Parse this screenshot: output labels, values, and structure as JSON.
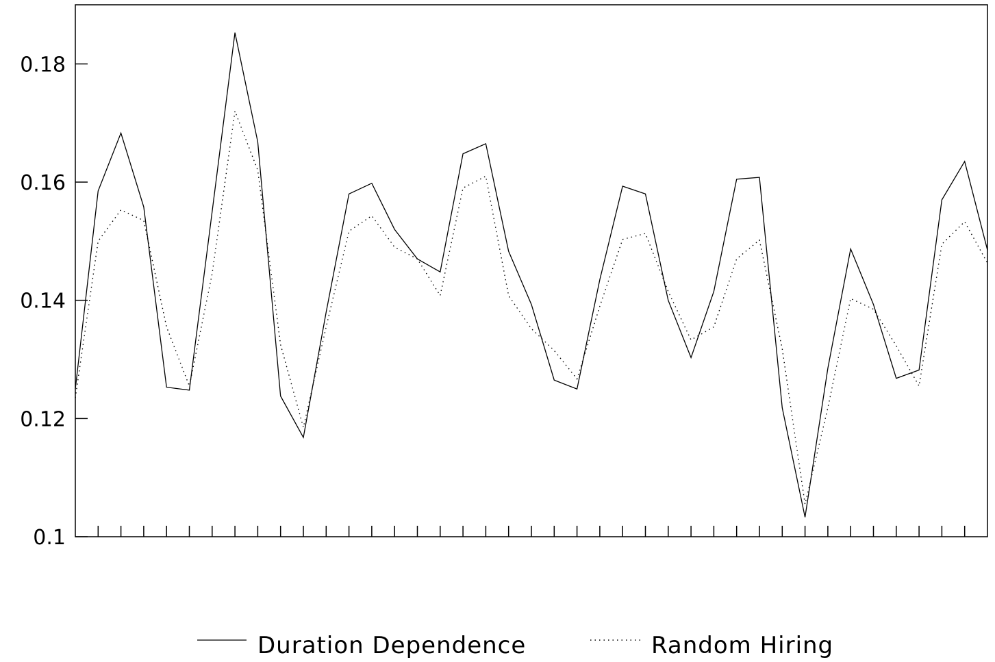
{
  "chart_data": {
    "type": "line",
    "title": "",
    "xlabel": "",
    "ylabel": "",
    "ylim": [
      0.1,
      0.19
    ],
    "xlim": [
      0,
      40
    ],
    "x": [
      0,
      1,
      2,
      3,
      4,
      5,
      6,
      7,
      8,
      9,
      10,
      11,
      12,
      13,
      14,
      15,
      16,
      17,
      18,
      19,
      20,
      21,
      22,
      23,
      24,
      25,
      26,
      27,
      28,
      29,
      30,
      31,
      32,
      33,
      34,
      35,
      36,
      37,
      38,
      39,
      40
    ],
    "y_ticks": [
      0.1,
      0.12,
      0.14,
      0.16,
      0.18
    ],
    "y_tick_labels": [
      "0.1",
      "0.12",
      "0.14",
      "0.16",
      "0.18"
    ],
    "grid": false,
    "legend_position": "bottom",
    "series": [
      {
        "name": "Duration Dependence",
        "style": "solid",
        "color": "#000000",
        "values": [
          0.125,
          0.1585,
          0.1683,
          0.1558,
          0.1253,
          0.1248,
          0.155,
          0.1853,
          0.1668,
          0.1238,
          0.1168,
          0.138,
          0.158,
          0.1598,
          0.152,
          0.147,
          0.1448,
          0.1648,
          0.1665,
          0.1483,
          0.1393,
          0.1265,
          0.125,
          0.1435,
          0.1593,
          0.158,
          0.14,
          0.1303,
          0.1415,
          0.1605,
          0.1608,
          0.1218,
          0.1033,
          0.1285,
          0.1487,
          0.1393,
          0.1268,
          0.1282,
          0.157,
          0.1635,
          0.1485
        ]
      },
      {
        "name": "Random Hiring",
        "style": "dotted",
        "color": "#000000",
        "values": [
          0.1235,
          0.15,
          0.1553,
          0.1535,
          0.1355,
          0.1255,
          0.1445,
          0.172,
          0.162,
          0.1325,
          0.1185,
          0.1355,
          0.1517,
          0.1543,
          0.149,
          0.147,
          0.1408,
          0.159,
          0.161,
          0.1408,
          0.1352,
          0.1315,
          0.1267,
          0.139,
          0.1503,
          0.1513,
          0.1415,
          0.1333,
          0.1355,
          0.147,
          0.1502,
          0.1318,
          0.1055,
          0.1218,
          0.1403,
          0.1385,
          0.1323,
          0.1255,
          0.1495,
          0.1533,
          0.1463
        ]
      }
    ]
  }
}
